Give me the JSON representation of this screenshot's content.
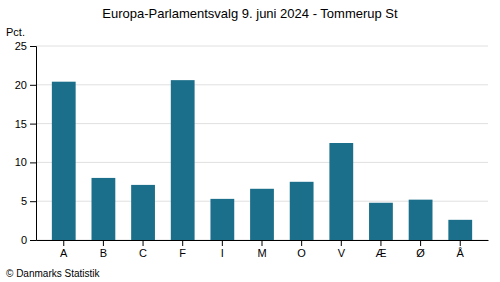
{
  "chart_data": {
    "type": "bar",
    "title": "Europa-Parlamentsvalg 9. juni 2024 - Tommerup St",
    "ylabel": "Pct.",
    "footer": "© Danmarks Statistik",
    "categories": [
      "A",
      "B",
      "C",
      "F",
      "I",
      "M",
      "O",
      "V",
      "Æ",
      "Ø",
      "Å"
    ],
    "values": [
      20.4,
      8.0,
      7.1,
      20.6,
      5.3,
      6.6,
      7.5,
      12.5,
      4.8,
      5.2,
      2.6
    ],
    "color": "#1b6f8a",
    "ylim": [
      0,
      25
    ],
    "yticks": [
      0,
      5,
      10,
      15,
      20,
      25
    ],
    "grid": true
  }
}
